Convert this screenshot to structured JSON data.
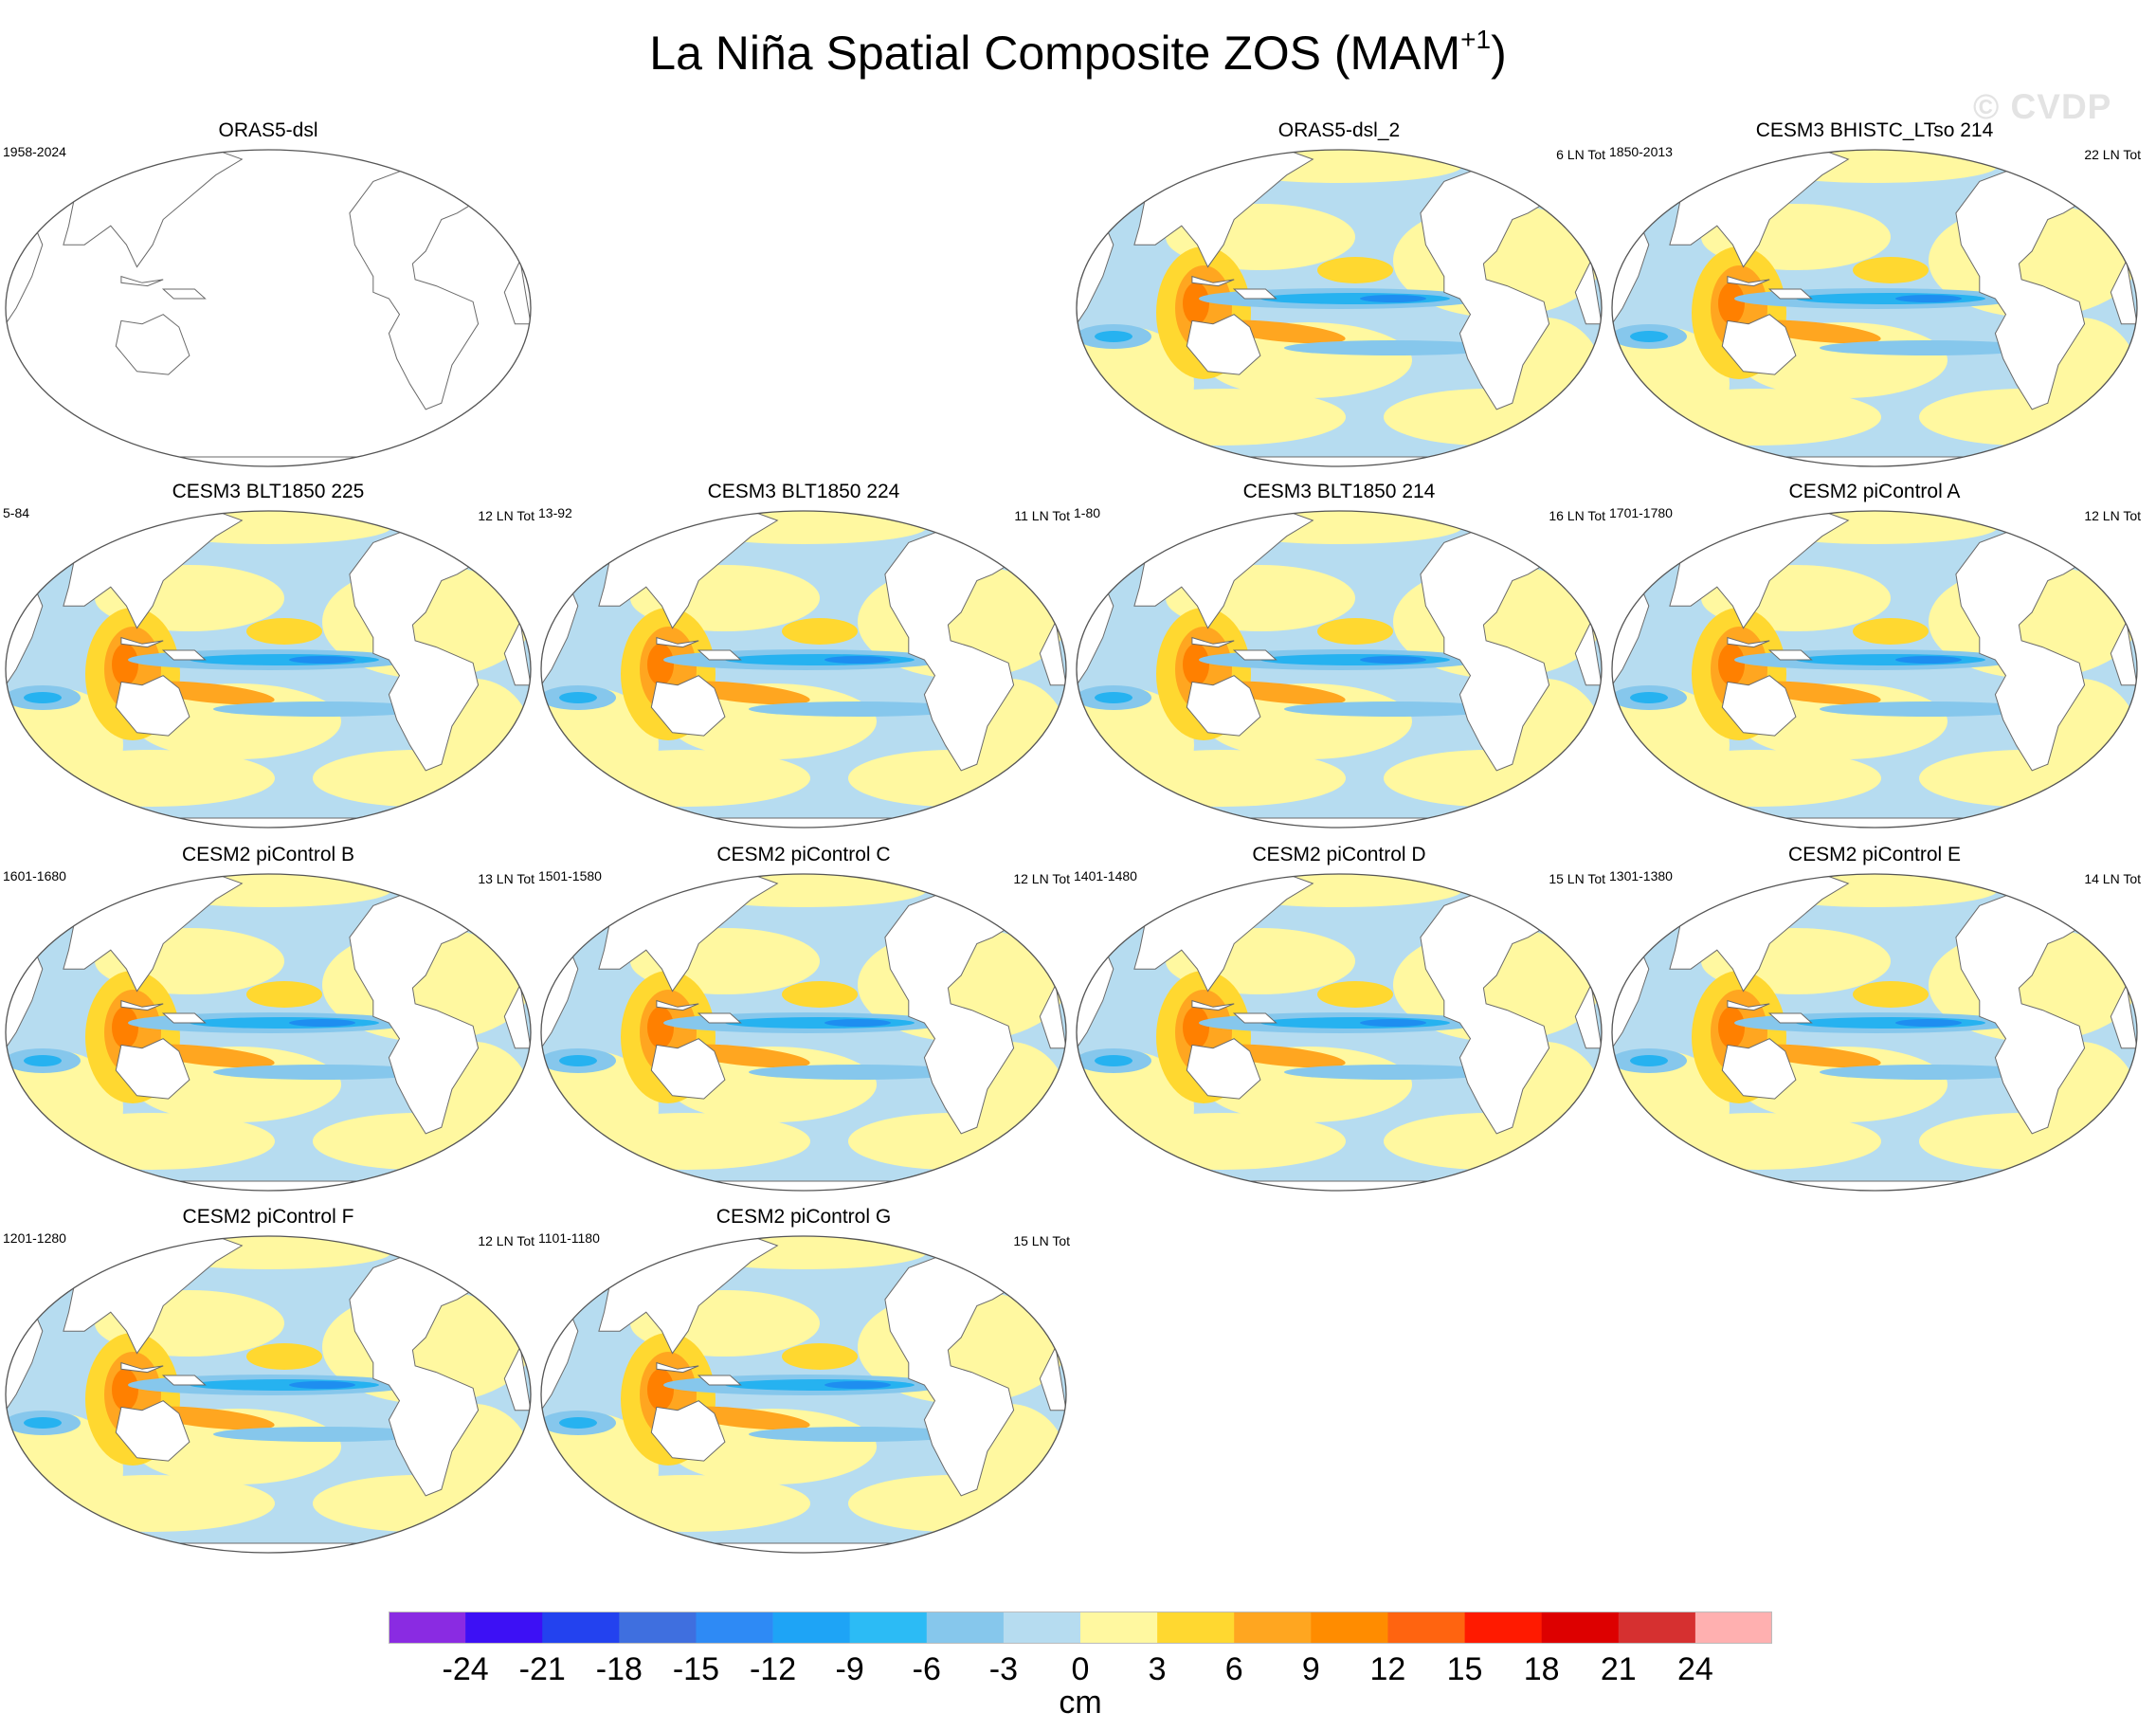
{
  "title": {
    "main": "La Niña Spatial Composite ZOS (MAM",
    "superscript": "+1",
    "close": ")"
  },
  "watermark": "© CVDP",
  "colors": {
    "land": "#ffffff",
    "coast": "#6a6a6a",
    "frame": "#555555",
    "neg3": "#b6dcf0",
    "neg6": "#86c7ec",
    "neg9": "#26b2f0",
    "neg12": "#1e8ef0",
    "pos3": "#fff8a0",
    "pos6": "#ffd830",
    "pos9": "#ffa620",
    "pos12": "#ff8000"
  },
  "panels": [
    {
      "title": "ORAS5-dsl",
      "years": "1958-2024",
      "count": "",
      "blank": true
    },
    {
      "title": "ORAS5-dsl_2",
      "years": "",
      "count": "6 LN Tot",
      "blank": false
    },
    {
      "title": "CESM3 BHISTC_LTso 214",
      "years": "1850-2013",
      "count": "22 LN Tot",
      "blank": false
    },
    {
      "title": "CESM3 BLT1850 225",
      "years": "5-84",
      "count": "12 LN Tot",
      "blank": false
    },
    {
      "title": "CESM3 BLT1850 224",
      "years": "13-92",
      "count": "11 LN Tot",
      "blank": false
    },
    {
      "title": "CESM3 BLT1850 214",
      "years": "1-80",
      "count": "16 LN Tot",
      "blank": false
    },
    {
      "title": "CESM2 piControl A",
      "years": "1701-1780",
      "count": "12 LN Tot",
      "blank": false
    },
    {
      "title": "CESM2 piControl B",
      "years": "1601-1680",
      "count": "13 LN Tot",
      "blank": false
    },
    {
      "title": "CESM2 piControl C",
      "years": "1501-1580",
      "count": "12 LN Tot",
      "blank": false
    },
    {
      "title": "CESM2 piControl D",
      "years": "1401-1480",
      "count": "15 LN Tot",
      "blank": false
    },
    {
      "title": "CESM2 piControl E",
      "years": "1301-1380",
      "count": "14 LN Tot",
      "blank": false
    },
    {
      "title": "CESM2 piControl F",
      "years": "1201-1280",
      "count": "12 LN Tot",
      "blank": false
    },
    {
      "title": "CESM2 piControl G",
      "years": "1101-1180",
      "count": "15 LN Tot",
      "blank": false
    }
  ],
  "colorbar": {
    "units": "cm",
    "labels": [
      "-24",
      "-21",
      "-18",
      "-15",
      "-12",
      "-9",
      "-6",
      "-3",
      "0",
      "3",
      "6",
      "9",
      "12",
      "15",
      "18",
      "21",
      "24"
    ],
    "colors": [
      "#8a2be2",
      "#3d10f5",
      "#2342ef",
      "#3f6fdf",
      "#2e8af5",
      "#1ea4f6",
      "#2cbbf5",
      "#86c7ec",
      "#b6dcf0",
      "#fff8a0",
      "#ffd830",
      "#ffa620",
      "#ff8c00",
      "#ff6410",
      "#ff1a00",
      "#dd0000",
      "#d63030",
      "#ffb0b0"
    ]
  }
}
